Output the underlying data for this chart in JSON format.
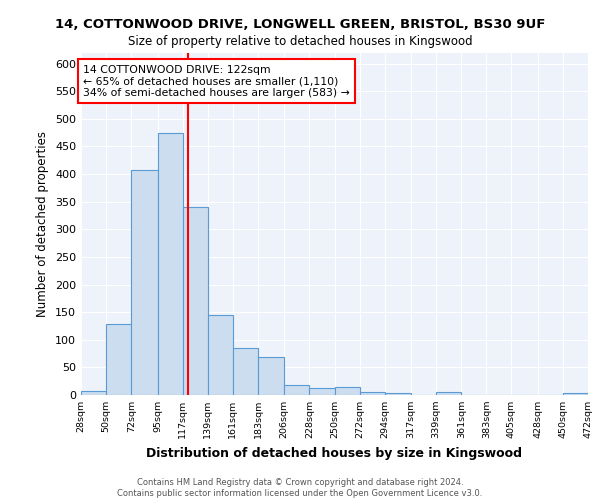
{
  "title_line1": "14, COTTONWOOD DRIVE, LONGWELL GREEN, BRISTOL, BS30 9UF",
  "title_line2": "Size of property relative to detached houses in Kingswood",
  "xlabel": "Distribution of detached houses by size in Kingswood",
  "ylabel": "Number of detached properties",
  "property_label": "14 COTTONWOOD DRIVE: 122sqm",
  "annotation_line2": "← 65% of detached houses are smaller (1,110)",
  "annotation_line3": "34% of semi-detached houses are larger (583) →",
  "bar_color": "#ccddf0",
  "bar_edge_color": "#5b9bd5",
  "vline_color": "red",
  "vline_x": 122,
  "footer_line1": "Contains HM Land Registry data © Crown copyright and database right 2024.",
  "footer_line2": "Contains public sector information licensed under the Open Government Licence v3.0.",
  "bins": [
    28,
    50,
    72,
    95,
    117,
    139,
    161,
    183,
    206,
    228,
    250,
    272,
    294,
    317,
    339,
    361,
    383,
    405,
    428,
    450,
    472
  ],
  "counts": [
    8,
    128,
    407,
    475,
    340,
    145,
    85,
    68,
    18,
    13,
    15,
    6,
    4,
    0,
    5,
    0,
    0,
    0,
    0,
    4
  ],
  "ylim": [
    0,
    620
  ],
  "yticks": [
    0,
    50,
    100,
    150,
    200,
    250,
    300,
    350,
    400,
    450,
    500,
    550,
    600
  ],
  "background_color": "#eef2fa"
}
